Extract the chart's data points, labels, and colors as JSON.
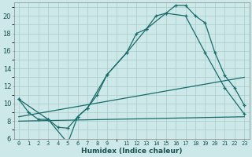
{
  "xlabel": "Humidex (Indice chaleur)",
  "bg_color": "#cce8e8",
  "grid_color": "#aacccc",
  "line_color": "#1a6b6b",
  "xlim": [
    -0.5,
    23.5
  ],
  "ylim": [
    6,
    21.5
  ],
  "xticks": [
    0,
    1,
    2,
    3,
    4,
    5,
    6,
    7,
    8,
    9,
    11,
    12,
    13,
    14,
    15,
    16,
    17,
    18,
    19,
    20,
    21,
    22,
    23
  ],
  "xtick_labels": [
    "0",
    "1",
    "2",
    "3",
    "4",
    "5",
    "6",
    "7",
    "8",
    "9",
    "11",
    "12",
    "13",
    "14",
    "15",
    "16",
    "17",
    "18",
    "19",
    "20",
    "21",
    "22",
    "23"
  ],
  "yticks": [
    6,
    8,
    10,
    12,
    14,
    16,
    18,
    20
  ],
  "line1_x": [
    0,
    1,
    2,
    3,
    4,
    5,
    6,
    7,
    8,
    9,
    11,
    12,
    13,
    14,
    15,
    16,
    17,
    18,
    19,
    20,
    21,
    22,
    23
  ],
  "line1_y": [
    10.5,
    9.0,
    8.2,
    8.2,
    7.3,
    7.2,
    8.5,
    9.5,
    11.0,
    13.3,
    15.8,
    18.0,
    18.5,
    20.0,
    20.3,
    21.2,
    21.2,
    20.0,
    19.2,
    15.8,
    13.2,
    11.8,
    9.8
  ],
  "line2_x": [
    0,
    3,
    5,
    6,
    7,
    9,
    11,
    13,
    15,
    17,
    19,
    21,
    23
  ],
  "line2_y": [
    10.5,
    8.2,
    5.5,
    8.5,
    9.5,
    13.3,
    15.8,
    18.5,
    20.3,
    20.0,
    15.8,
    11.8,
    8.8
  ],
  "line3_x": [
    0,
    23
  ],
  "line3_y": [
    8.5,
    13.0
  ],
  "line4_x": [
    0,
    23
  ],
  "line4_y": [
    8.0,
    8.5
  ]
}
